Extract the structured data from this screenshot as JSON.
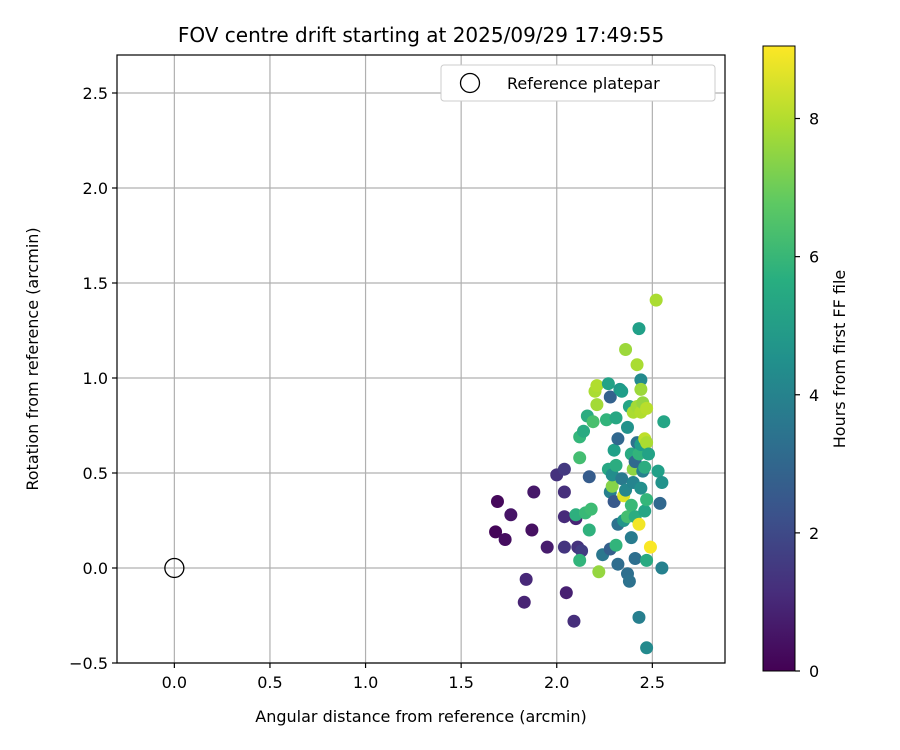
{
  "chart_data": {
    "type": "scatter",
    "title": "FOV centre drift starting at 2025/09/29 17:49:55",
    "xlabel": "Angular distance from reference (arcmin)",
    "ylabel": "Rotation from reference (arcmin)",
    "xlim": [
      -0.3,
      2.88
    ],
    "ylim": [
      -0.5,
      2.7
    ],
    "xticks": [
      0.0,
      0.5,
      1.0,
      1.5,
      2.0,
      2.5
    ],
    "yticks": [
      -0.5,
      0.0,
      0.5,
      1.0,
      1.5,
      2.0,
      2.5
    ],
    "xtick_labels": [
      "0.0",
      "0.5",
      "1.0",
      "1.5",
      "2.0",
      "2.5"
    ],
    "ytick_labels": [
      "−0.5",
      "0.0",
      "0.5",
      "1.0",
      "1.5",
      "2.0",
      "2.5"
    ],
    "grid": true,
    "legend": {
      "placement": "top-right",
      "label": "Reference platepar"
    },
    "reference_point": {
      "x": 0.0,
      "y": 0.0
    },
    "colorbar": {
      "label": "Hours from first FF file",
      "colormap": "viridis",
      "range": [
        0,
        9.05
      ],
      "ticks": [
        0,
        2,
        4,
        6,
        8
      ],
      "tick_labels": [
        "0",
        "2",
        "4",
        "6",
        "8"
      ]
    },
    "points": [
      {
        "x": 1.69,
        "y": 0.35,
        "c": 0.2
      },
      {
        "x": 1.68,
        "y": 0.19,
        "c": 0.1
      },
      {
        "x": 1.73,
        "y": 0.15,
        "c": 0.3
      },
      {
        "x": 1.76,
        "y": 0.28,
        "c": 0.5
      },
      {
        "x": 1.83,
        "y": -0.18,
        "c": 0.9
      },
      {
        "x": 1.84,
        "y": -0.06,
        "c": 1.0
      },
      {
        "x": 1.87,
        "y": 0.2,
        "c": 0.4
      },
      {
        "x": 1.88,
        "y": 0.4,
        "c": 0.6
      },
      {
        "x": 1.95,
        "y": 0.11,
        "c": 0.7
      },
      {
        "x": 2.0,
        "y": 0.49,
        "c": 1.3
      },
      {
        "x": 2.04,
        "y": 0.52,
        "c": 1.5
      },
      {
        "x": 2.04,
        "y": 0.27,
        "c": 1.1
      },
      {
        "x": 2.04,
        "y": 0.4,
        "c": 1.2
      },
      {
        "x": 2.04,
        "y": 0.11,
        "c": 1.4
      },
      {
        "x": 2.05,
        "y": -0.13,
        "c": 0.8
      },
      {
        "x": 2.09,
        "y": -0.28,
        "c": 1.2
      },
      {
        "x": 2.1,
        "y": 0.26,
        "c": 0.9
      },
      {
        "x": 2.11,
        "y": 0.11,
        "c": 1.3
      },
      {
        "x": 2.13,
        "y": 0.09,
        "c": 1.6
      },
      {
        "x": 2.1,
        "y": 0.28,
        "c": 5.7
      },
      {
        "x": 2.12,
        "y": 0.04,
        "c": 5.9
      },
      {
        "x": 2.15,
        "y": 0.29,
        "c": 6.1
      },
      {
        "x": 2.17,
        "y": 0.2,
        "c": 5.8
      },
      {
        "x": 2.18,
        "y": 0.31,
        "c": 6.2
      },
      {
        "x": 2.17,
        "y": 0.48,
        "c": 2.6
      },
      {
        "x": 2.12,
        "y": 0.58,
        "c": 6.3
      },
      {
        "x": 2.12,
        "y": 0.69,
        "c": 6.0
      },
      {
        "x": 2.14,
        "y": 0.72,
        "c": 5.5
      },
      {
        "x": 2.16,
        "y": 0.8,
        "c": 5.6
      },
      {
        "x": 2.19,
        "y": 0.77,
        "c": 6.4
      },
      {
        "x": 2.2,
        "y": 0.93,
        "c": 7.9
      },
      {
        "x": 2.21,
        "y": 0.96,
        "c": 8.0
      },
      {
        "x": 2.21,
        "y": 0.86,
        "c": 7.8
      },
      {
        "x": 2.22,
        "y": -0.02,
        "c": 7.6
      },
      {
        "x": 2.24,
        "y": 0.07,
        "c": 3.6
      },
      {
        "x": 2.26,
        "y": 0.78,
        "c": 5.9
      },
      {
        "x": 2.27,
        "y": 0.97,
        "c": 5.2
      },
      {
        "x": 2.27,
        "y": 0.52,
        "c": 5.4
      },
      {
        "x": 2.28,
        "y": 0.4,
        "c": 3.9
      },
      {
        "x": 2.28,
        "y": 0.9,
        "c": 2.8
      },
      {
        "x": 2.28,
        "y": 0.1,
        "c": 2.7
      },
      {
        "x": 2.29,
        "y": 0.43,
        "c": 7.4
      },
      {
        "x": 2.29,
        "y": 0.49,
        "c": 4.4
      },
      {
        "x": 2.3,
        "y": 0.62,
        "c": 5.1
      },
      {
        "x": 2.3,
        "y": 0.35,
        "c": 2.5
      },
      {
        "x": 2.31,
        "y": 0.79,
        "c": 5.4
      },
      {
        "x": 2.31,
        "y": 0.54,
        "c": 5.6
      },
      {
        "x": 2.31,
        "y": 0.12,
        "c": 5.9
      },
      {
        "x": 2.32,
        "y": 0.23,
        "c": 3.4
      },
      {
        "x": 2.32,
        "y": 0.68,
        "c": 3.0
      },
      {
        "x": 2.32,
        "y": 0.02,
        "c": 3.2
      },
      {
        "x": 2.33,
        "y": 0.94,
        "c": 4.8
      },
      {
        "x": 2.34,
        "y": 0.93,
        "c": 5.0
      },
      {
        "x": 2.34,
        "y": 0.47,
        "c": 3.7
      },
      {
        "x": 2.35,
        "y": 0.25,
        "c": 4.7
      },
      {
        "x": 2.35,
        "y": 0.38,
        "c": 8.6
      },
      {
        "x": 2.36,
        "y": 1.15,
        "c": 7.7
      },
      {
        "x": 2.36,
        "y": 0.41,
        "c": 4.2
      },
      {
        "x": 2.37,
        "y": 0.74,
        "c": 4.6
      },
      {
        "x": 2.37,
        "y": -0.03,
        "c": 3.3
      },
      {
        "x": 2.37,
        "y": 0.27,
        "c": 6.3
      },
      {
        "x": 2.38,
        "y": 0.85,
        "c": 5.3
      },
      {
        "x": 2.38,
        "y": -0.07,
        "c": 3.4
      },
      {
        "x": 2.39,
        "y": 0.6,
        "c": 5.5
      },
      {
        "x": 2.39,
        "y": 0.33,
        "c": 6.1
      },
      {
        "x": 2.39,
        "y": 0.16,
        "c": 3.8
      },
      {
        "x": 2.4,
        "y": 0.45,
        "c": 4.1
      },
      {
        "x": 2.4,
        "y": 0.82,
        "c": 7.9
      },
      {
        "x": 2.4,
        "y": 0.52,
        "c": 7.5
      },
      {
        "x": 2.41,
        "y": 0.27,
        "c": 5.6
      },
      {
        "x": 2.41,
        "y": 0.05,
        "c": 3.3
      },
      {
        "x": 2.41,
        "y": 0.56,
        "c": 3.1
      },
      {
        "x": 2.42,
        "y": 0.66,
        "c": 3.4
      },
      {
        "x": 2.42,
        "y": 1.07,
        "c": 7.9
      },
      {
        "x": 2.42,
        "y": 0.85,
        "c": 7.8
      },
      {
        "x": 2.43,
        "y": 1.26,
        "c": 5.1
      },
      {
        "x": 2.43,
        "y": 0.23,
        "c": 8.9
      },
      {
        "x": 2.43,
        "y": 0.6,
        "c": 5.9
      },
      {
        "x": 2.43,
        "y": -0.26,
        "c": 3.9
      },
      {
        "x": 2.44,
        "y": 0.99,
        "c": 4.3
      },
      {
        "x": 2.44,
        "y": 0.94,
        "c": 7.7
      },
      {
        "x": 2.44,
        "y": 0.82,
        "c": 8.0
      },
      {
        "x": 2.44,
        "y": 0.42,
        "c": 4.5
      },
      {
        "x": 2.44,
        "y": 0.65,
        "c": 5.0
      },
      {
        "x": 2.45,
        "y": 0.51,
        "c": 4.0
      },
      {
        "x": 2.45,
        "y": 0.87,
        "c": 7.6
      },
      {
        "x": 2.46,
        "y": 0.68,
        "c": 8.2
      },
      {
        "x": 2.46,
        "y": 0.3,
        "c": 5.3
      },
      {
        "x": 2.46,
        "y": 0.53,
        "c": 5.6
      },
      {
        "x": 2.47,
        "y": 0.36,
        "c": 6.0
      },
      {
        "x": 2.47,
        "y": 0.66,
        "c": 7.9
      },
      {
        "x": 2.47,
        "y": 0.84,
        "c": 8.1
      },
      {
        "x": 2.47,
        "y": 0.04,
        "c": 5.5
      },
      {
        "x": 2.47,
        "y": -0.42,
        "c": 4.3
      },
      {
        "x": 2.48,
        "y": 0.6,
        "c": 5.2
      },
      {
        "x": 2.49,
        "y": 0.11,
        "c": 9.0
      },
      {
        "x": 2.52,
        "y": 1.41,
        "c": 7.9
      },
      {
        "x": 2.53,
        "y": 0.51,
        "c": 5.1
      },
      {
        "x": 2.54,
        "y": 0.34,
        "c": 3.0
      },
      {
        "x": 2.55,
        "y": 0.45,
        "c": 4.6
      },
      {
        "x": 2.55,
        "y": 0.0,
        "c": 4.0
      },
      {
        "x": 2.56,
        "y": 0.77,
        "c": 5.3
      }
    ]
  }
}
